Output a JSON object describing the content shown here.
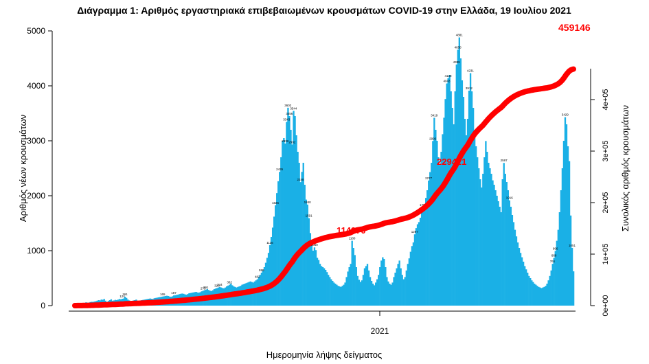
{
  "chart_data": {
    "type": "bar+line",
    "title": "Διάγραμμα 1: Αριθμός εργαστηριακά επιβεβαιωμένων κρουσμάτων COVID-19 στην Ελλάδα, 19 Ιουλίου 2021",
    "xlabel": "Ημερομηνία λήψης δείγματος",
    "ylabel_left": "Αριθμός νέων κρουσμάτων",
    "ylabel_right": "Συνολικός αριθμός κρουσμάτων",
    "x_tick_labels": [
      "2021"
    ],
    "y_left_ticks": [
      "0",
      "1000",
      "2000",
      "3000",
      "4000",
      "5000"
    ],
    "y_left_lim": [
      0,
      5000
    ],
    "y_right_ticks": [
      "0e+00",
      "1e+05",
      "2e+05",
      "3e+05",
      "4e+05"
    ],
    "y_right_lim": [
      0,
      460000
    ],
    "bar_color": "#1ab0e6",
    "line_color": "#ff0000",
    "annotations": [
      "114970",
      "229421",
      "459146"
    ],
    "bar_value_labels": [
      "161",
      "3602",
      "3544",
      "3456",
      "3343",
      "2932",
      "2435",
      "2248",
      "1826",
      "1591",
      "1180",
      "1840",
      "3419",
      "4043",
      "4138",
      "4658",
      "4881",
      "4389",
      "4231",
      "3912",
      "3429",
      "2996",
      "2932",
      "2597",
      "2277",
      "1916",
      "1789",
      "1297",
      "1116",
      "1060",
      "1051",
      "996",
      "868",
      "761",
      "599",
      "482",
      "382",
      "344",
      "320",
      "291",
      "273",
      "187",
      "165",
      "124"
    ],
    "new_cases_daily": [
      15,
      20,
      25,
      30,
      35,
      40,
      38,
      45,
      60,
      55,
      52,
      65,
      70,
      68,
      75,
      80,
      90,
      100,
      95,
      110,
      107,
      120,
      90,
      60,
      85,
      100,
      115,
      90,
      95,
      105,
      100,
      110,
      120,
      115,
      125,
      130,
      161,
      140,
      110,
      95,
      85,
      80,
      95,
      100,
      110,
      90,
      85,
      95,
      100,
      105,
      110,
      115,
      120,
      125,
      130,
      125,
      120,
      135,
      140,
      145,
      150,
      155,
      160,
      165,
      170,
      175,
      180,
      175,
      165,
      160,
      170,
      185,
      190,
      195,
      200,
      210,
      215,
      220,
      215,
      205,
      200,
      210,
      225,
      230,
      235,
      240,
      245,
      250,
      240,
      235,
      245,
      260,
      270,
      280,
      290,
      300,
      285,
      270,
      265,
      280,
      300,
      310,
      320,
      330,
      340,
      330,
      320,
      315,
      330,
      350,
      365,
      380,
      400,
      370,
      350,
      340,
      330,
      340,
      350,
      360,
      380,
      390,
      400,
      410,
      420,
      430,
      440,
      430,
      420,
      440,
      460,
      480,
      520,
      560,
      600,
      640,
      700,
      780,
      870,
      960,
      1100,
      1250,
      1420,
      1620,
      1826,
      2048,
      2264,
      2435,
      2700,
      3000,
      3050,
      2950,
      3343,
      3602,
      3450,
      3200,
      2932,
      3544,
      3450,
      3100,
      2800,
      2600,
      2248,
      2434,
      2600,
      2200,
      1930,
      1840,
      1591,
      1320,
      1150,
      1000,
      1060,
      1010,
      870,
      830,
      760,
      720,
      700,
      680,
      650,
      610,
      560,
      520,
      480,
      450,
      420,
      400,
      380,
      360,
      350,
      340,
      360,
      380,
      420,
      520,
      620,
      700,
      760,
      1180,
      1050,
      920,
      700,
      540,
      470,
      430,
      460,
      560,
      680,
      720,
      760,
      640,
      520,
      450,
      400,
      370,
      420,
      480,
      560,
      700,
      820,
      880,
      850,
      700,
      520,
      440,
      400,
      380,
      420,
      520,
      600,
      680,
      760,
      820,
      680,
      560,
      480,
      520,
      640,
      760,
      860,
      980,
      1084,
      1150,
      1297,
      1411,
      1480,
      1520,
      1600,
      1720,
      1789,
      1840,
      1960,
      2100,
      2277,
      2430,
      2600,
      2996,
      3419,
      3200,
      3000,
      2700,
      2560,
      2800,
      3120,
      3420,
      3760,
      4043,
      4138,
      4200,
      3900,
      3600,
      3300,
      3900,
      4389,
      4658,
      4881,
      4500,
      4100,
      3800,
      3400,
      3100,
      3400,
      3912,
      4231,
      3900,
      3600,
      3200,
      2900,
      2700,
      2500,
      2300,
      2150,
      2400,
      2700,
      2996,
      2800,
      2600,
      2500,
      2400,
      2280,
      2200,
      2100,
      2000,
      1900,
      1800,
      1700,
      2300,
      2597,
      2400,
      2250,
      2100,
      1916,
      1800,
      1650,
      1520,
      1380,
      1260,
      1150,
      1050,
      960,
      880,
      800,
      720,
      660,
      600,
      540,
      500,
      460,
      430,
      400,
      380,
      360,
      340,
      330,
      320,
      330,
      340,
      360,
      400,
      460,
      540,
      640,
      761,
      868,
      996,
      1180,
      1380,
      1700,
      2100,
      2500,
      3000,
      3429,
      3300,
      2900,
      2630,
      1640,
      1051,
      624
    ]
  }
}
